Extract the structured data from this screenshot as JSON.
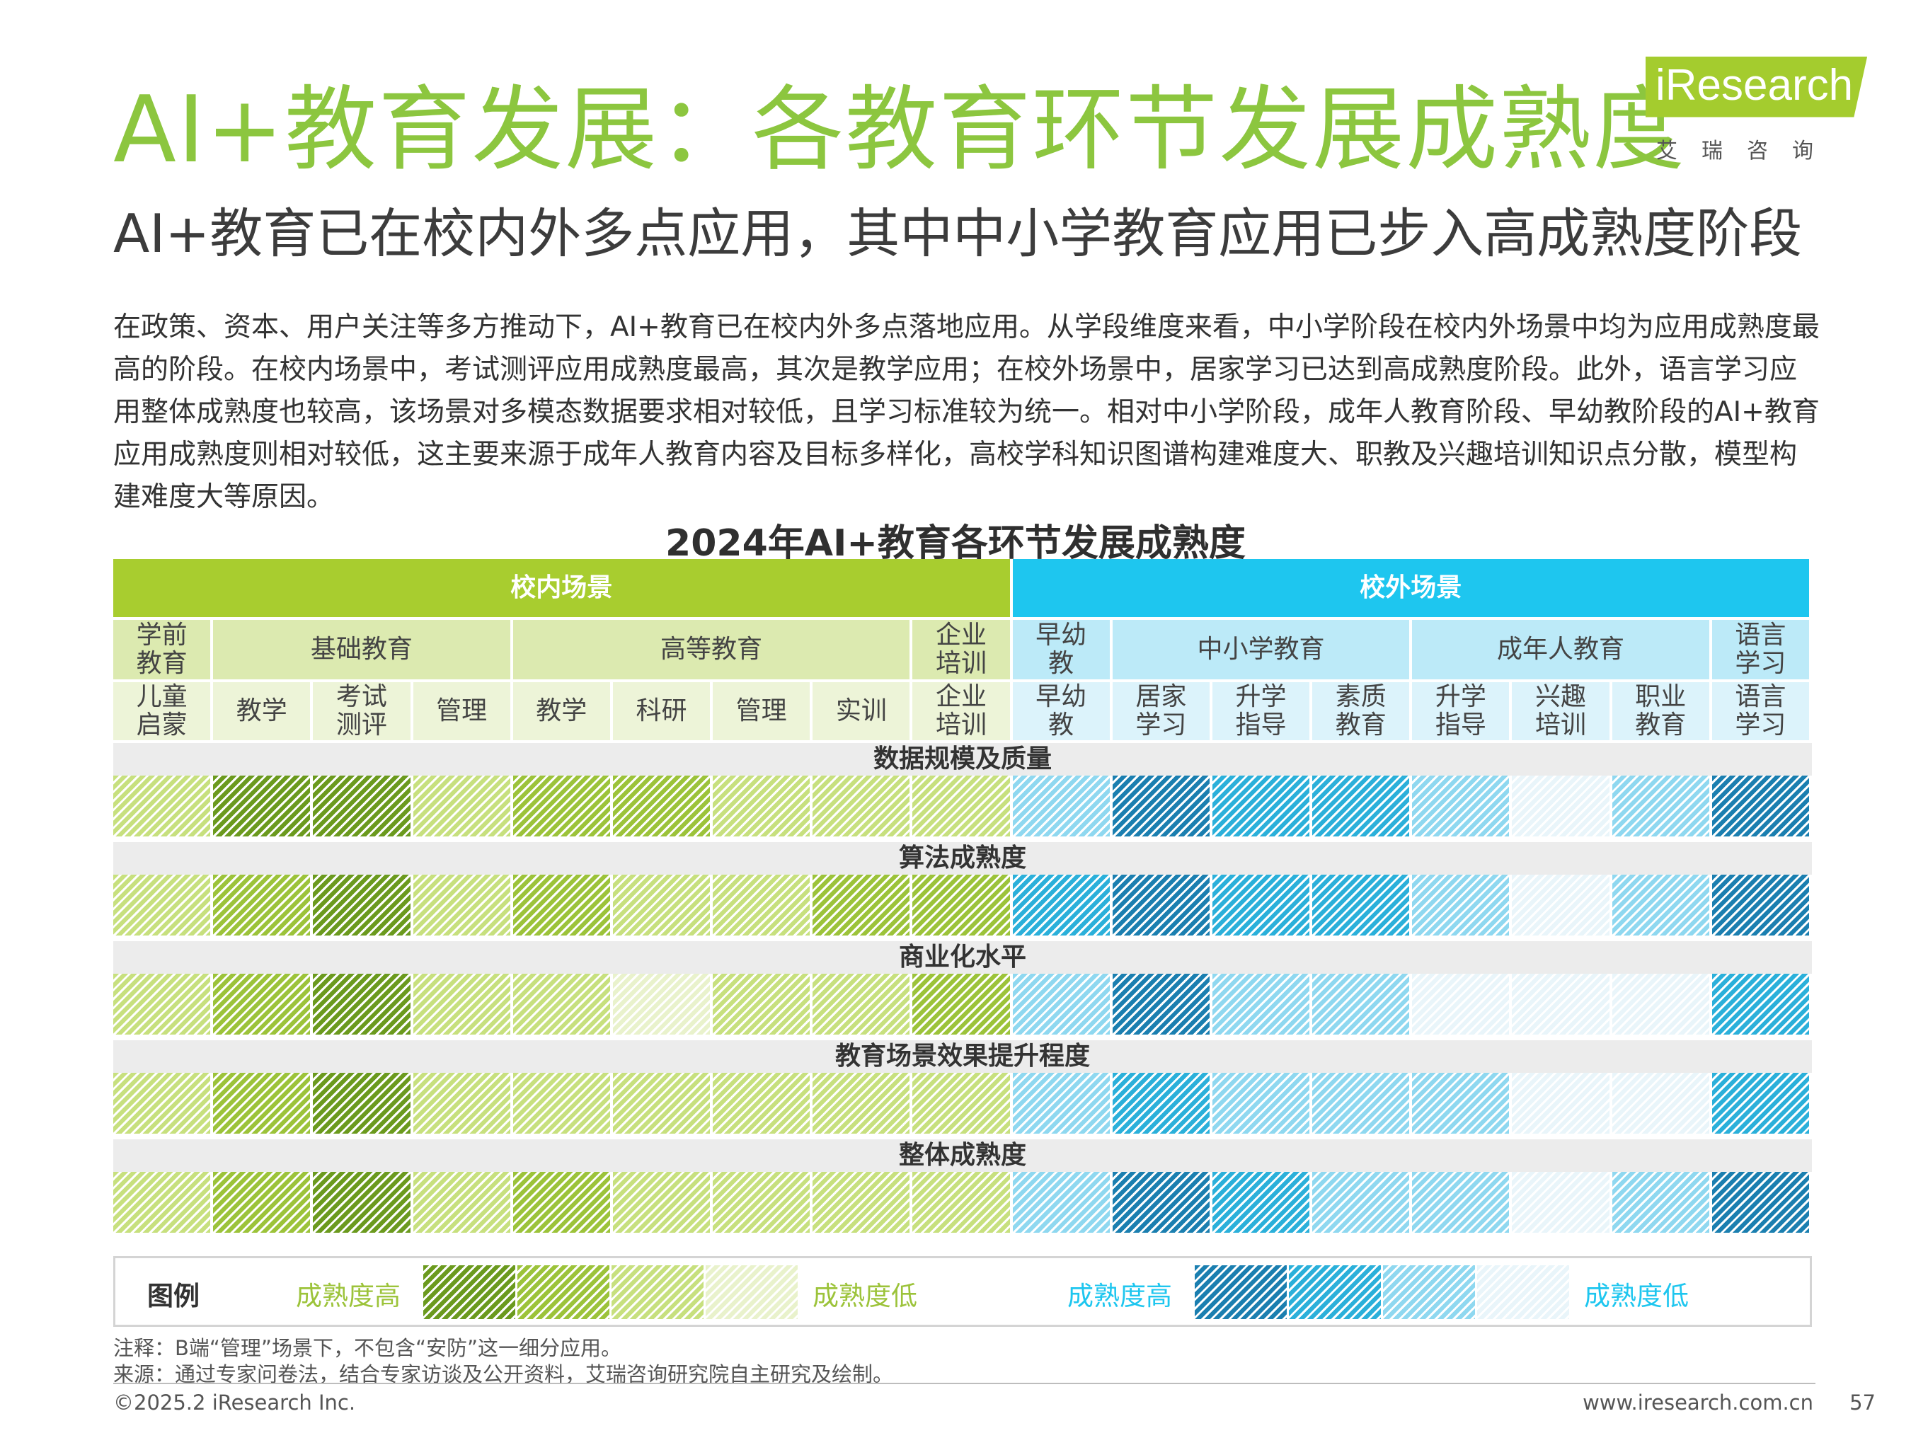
{
  "header": {
    "title": "AI+教育发展：各教育环节发展成熟度",
    "subtitle": "AI+教育已在校内外多点应用，其中中小学教育应用已步入高成熟度阶段"
  },
  "logo": {
    "main": "iResearch",
    "sub": "艾瑞咨询"
  },
  "intro": "在政策、资本、用户关注等多方推动下，AI+教育已在校内外多点落地应用。从学段维度来看，中小学阶段在校内外场景中均为应用成熟度最高的阶段。在校内场景中，考试测评应用成熟度最高，其次是教学应用；在校外场景中，居家学习已达到高成熟度阶段。此外，语言学习应用整体成熟度也较高，该场景对多模态数据要求相对较低，且学习标准较为统一。相对中小学阶段，成年人教育阶段、早幼教阶段的AI+教育应用成熟度则相对较低，这主要来源于成年人教育内容及目标多样化，高校学科知识图谱构建难度大、职教及兴趣培训知识点分散，模型构建难度大等原因。",
  "chart_data": {
    "type": "table",
    "title": "2024年AI+教育各环节发展成熟度",
    "scenes": [
      {
        "label": "校内场景",
        "span": 9,
        "color": "#a8cd2f"
      },
      {
        "label": "校外场景",
        "span": 8,
        "color": "#1ec6ef"
      }
    ],
    "stages": [
      {
        "label": "学前\n教育",
        "span": 1,
        "scene": 0
      },
      {
        "label": "基础教育",
        "span": 3,
        "scene": 0
      },
      {
        "label": "高等教育",
        "span": 4,
        "scene": 0
      },
      {
        "label": "企业\n培训",
        "span": 1,
        "scene": 0
      },
      {
        "label": "早幼\n教",
        "span": 1,
        "scene": 1
      },
      {
        "label": "中小学教育",
        "span": 3,
        "scene": 1
      },
      {
        "label": "成年人教育",
        "span": 3,
        "scene": 1
      },
      {
        "label": "语言\n学习",
        "span": 1,
        "scene": 1
      }
    ],
    "columns": [
      "儿童\n启蒙",
      "教学",
      "考试\n测评",
      "管理",
      "教学",
      "科研",
      "管理",
      "实训",
      "企业\n培训",
      "早幼\n教",
      "居家\n学习",
      "升学\n指导",
      "素质\n教育",
      "升学\n指导",
      "兴趣\n培训",
      "职业\n教育",
      "语言\n学习"
    ],
    "rows": [
      {
        "label": "数据规模及质量",
        "levels": [
          3,
          1,
          1,
          3,
          2,
          2,
          3,
          3,
          3,
          3,
          1,
          2,
          2,
          3,
          4,
          3,
          1
        ]
      },
      {
        "label": "算法成熟度",
        "levels": [
          3,
          2,
          1,
          3,
          2,
          3,
          3,
          2,
          2,
          2,
          1,
          2,
          2,
          3,
          4,
          3,
          1
        ]
      },
      {
        "label": "商业化水平",
        "levels": [
          3,
          2,
          1,
          3,
          3,
          4,
          3,
          3,
          2,
          3,
          1,
          3,
          3,
          4,
          4,
          4,
          2
        ]
      },
      {
        "label": "教育场景效果提升程度",
        "levels": [
          3,
          2,
          1,
          3,
          3,
          3,
          3,
          3,
          3,
          3,
          2,
          3,
          3,
          3,
          4,
          4,
          2
        ]
      },
      {
        "label": "整体成熟度",
        "levels": [
          3,
          2,
          1,
          3,
          2,
          3,
          3,
          3,
          3,
          3,
          1,
          2,
          3,
          3,
          4,
          3,
          1
        ]
      }
    ],
    "legend": {
      "title": "图例",
      "green_high": "成熟度高",
      "green_low": "成熟度低",
      "blue_high": "成熟度高",
      "blue_low": "成熟度低"
    },
    "palette": {
      "green": [
        "#6b9a1e",
        "#9cc33a",
        "#c7e07e",
        "#e9f2cc"
      ],
      "blue": [
        "#1b7fb0",
        "#2bb0da",
        "#8fd8f0",
        "#e9f5fa"
      ],
      "green_header": "#a8cd2f",
      "green_stage": "#dceab0",
      "green_sub": "#edf4d8",
      "blue_header": "#1ec6ef",
      "blue_stage": "#bceaf8",
      "blue_sub": "#dcf3fb",
      "row_title": "#ececec"
    }
  },
  "notes": {
    "note": "注释：B端“管理”场景下，不包含“安防”这一细分应用。",
    "source": "来源：通过专家问卷法，结合专家访谈及公开资料，艾瑞咨询研究院自主研究及绘制。"
  },
  "footer": {
    "copyright": "©2025.2 iResearch Inc.",
    "site": "www.iresearch.com.cn",
    "page": "57"
  }
}
